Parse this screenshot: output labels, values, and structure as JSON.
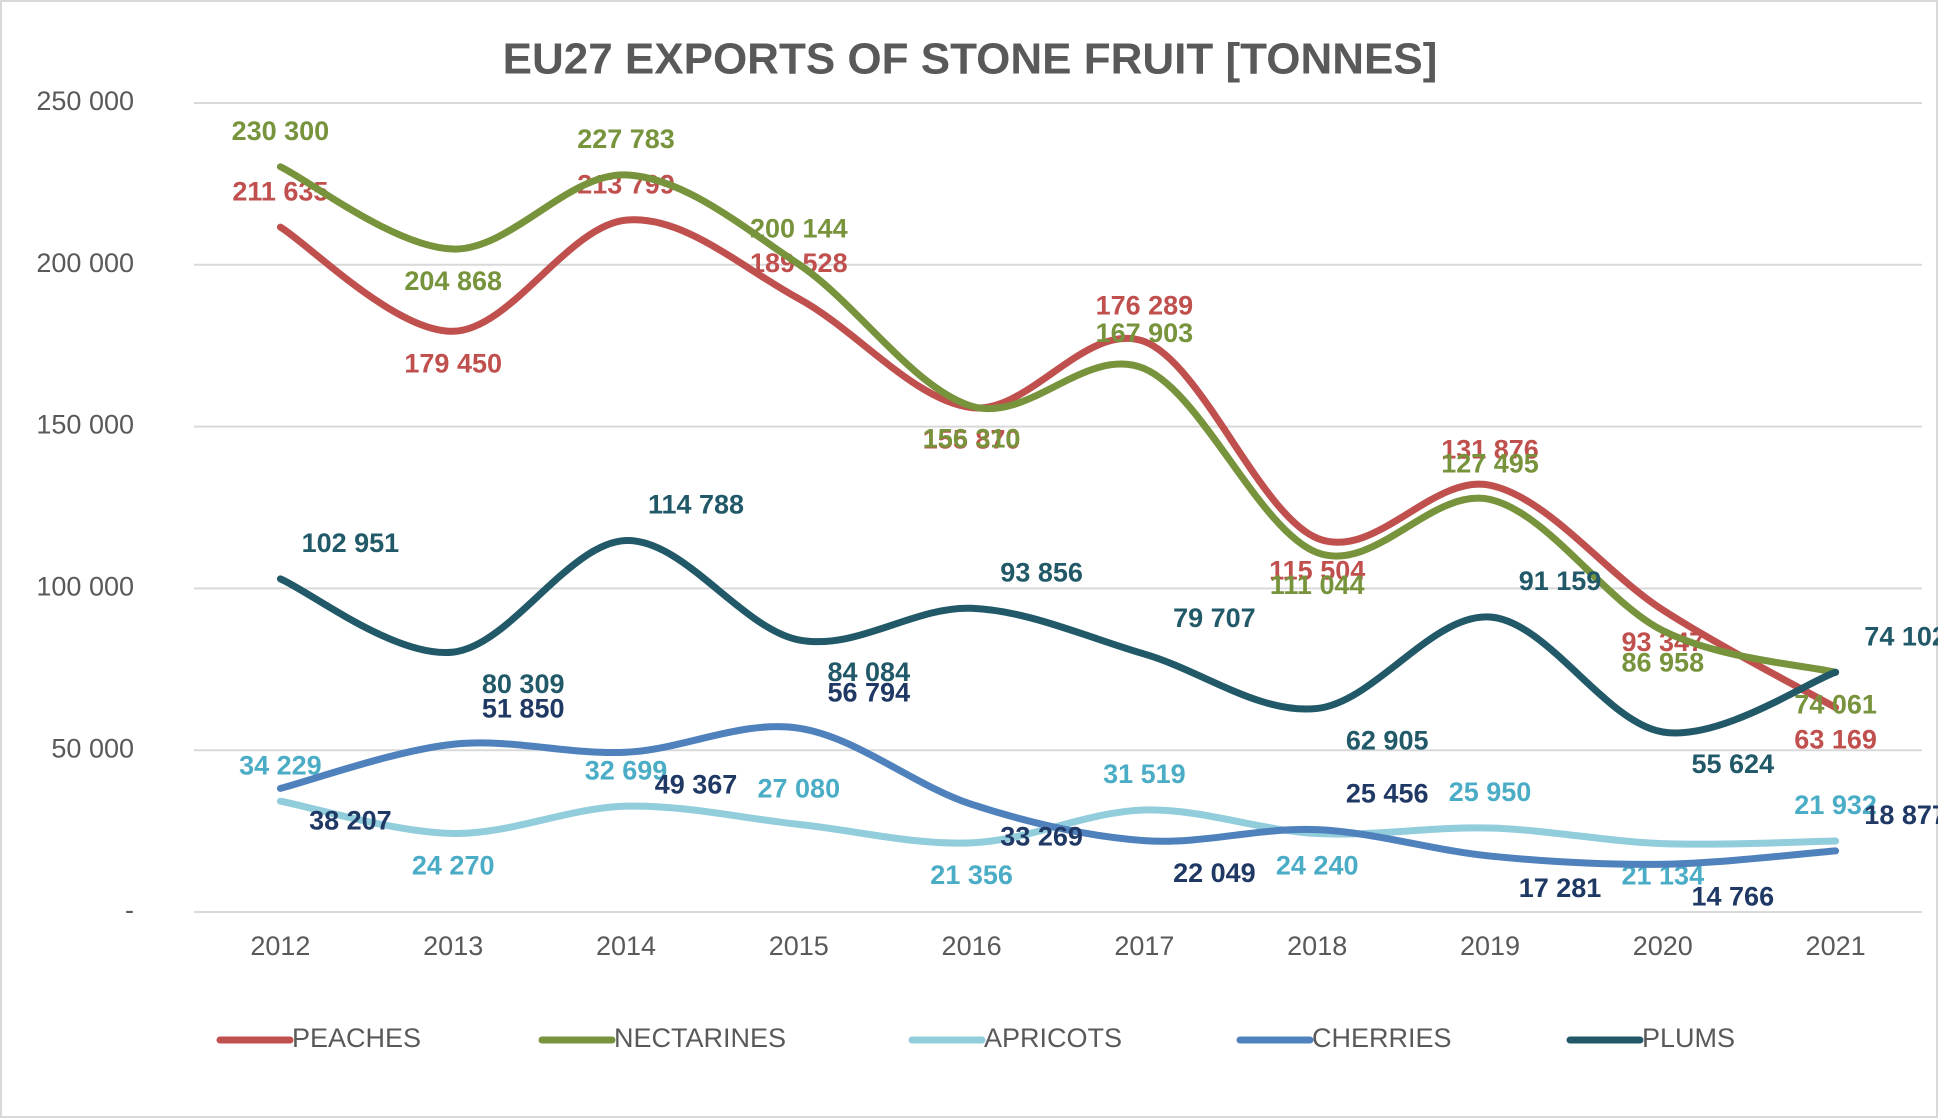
{
  "chart_data": {
    "type": "line",
    "title": "EU27 EXPORTS OF STONE FRUIT [TONNES]",
    "categories": [
      "2012",
      "2013",
      "2014",
      "2015",
      "2016",
      "2017",
      "2018",
      "2019",
      "2020",
      "2021"
    ],
    "ylim": [
      0,
      250000
    ],
    "yticks": [
      {
        "value": 0,
        "label": "-"
      },
      {
        "value": 50000,
        "label": "50 000"
      },
      {
        "value": 100000,
        "label": "100 000"
      },
      {
        "value": 150000,
        "label": "150 000"
      },
      {
        "value": 200000,
        "label": "200 000"
      },
      {
        "value": 250000,
        "label": "250 000"
      }
    ],
    "grid": true,
    "legend": "bottom",
    "smooth": true,
    "series": [
      {
        "name": "PEACHES",
        "color": "#c0504d",
        "label_color": "#c0504d",
        "values": [
          211635,
          179450,
          213799,
          189528,
          155870,
          176289,
          115504,
          131876,
          93347,
          63169
        ],
        "value_labels": [
          "211 635",
          "179 450",
          "213 799",
          "189 528",
          "155 870",
          "176 289",
          "115 504",
          "131 876",
          "93 347",
          "63 169"
        ]
      },
      {
        "name": "NECTARINES",
        "color": "#77933c",
        "label_color": "#77933c",
        "values": [
          230300,
          204868,
          227783,
          200144,
          156310,
          167903,
          111044,
          127495,
          86958,
          74061
        ],
        "value_labels": [
          "230 300",
          "204 868",
          "227 783",
          "200 144",
          "156 310",
          "167 903",
          "111 044",
          "127 495",
          "86 958",
          "74 061"
        ]
      },
      {
        "name": "APRICOTS",
        "color": "#92cddc",
        "label_color": "#4bacc6",
        "values": [
          34229,
          24270,
          32699,
          27080,
          21356,
          31519,
          24240,
          25950,
          21134,
          21932
        ],
        "value_labels": [
          "34 229",
          "24 270",
          "32 699",
          "27 080",
          "21 356",
          "31 519",
          "24 240",
          "25 950",
          "21 134",
          "21 932"
        ]
      },
      {
        "name": "CHERRIES",
        "color": "#4f81bd",
        "label_color": "#1f3864",
        "values": [
          38207,
          51850,
          49367,
          56794,
          33269,
          22049,
          25456,
          17281,
          14766,
          18877
        ],
        "value_labels": [
          "38 207",
          "51 850",
          "49 367",
          "56 794",
          "33 269",
          "22 049",
          "25 456",
          "17 281",
          "14 766",
          "18 877"
        ]
      },
      {
        "name": "PLUMS",
        "color": "#215968",
        "label_color": "#215968",
        "values": [
          102951,
          80309,
          114788,
          84084,
          93856,
          79707,
          62905,
          91159,
          55624,
          74102
        ],
        "value_labels": [
          "102 951",
          "80 309",
          "114 788",
          "84 084",
          "93 856",
          "79 707",
          "62 905",
          "91 159",
          "55 624",
          "74 102"
        ]
      }
    ]
  }
}
